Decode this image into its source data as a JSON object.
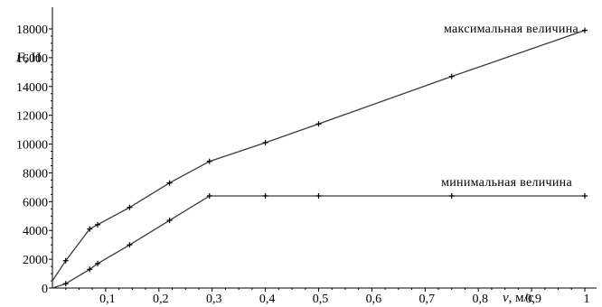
{
  "chart_data": {
    "type": "line",
    "x_axis": {
      "label_var": "v",
      "label_unit": ", м/с",
      "range": [
        0,
        1
      ],
      "ticks": [
        0.1,
        0.2,
        0.3,
        0.4,
        0.5,
        0.6,
        0.7,
        0.8,
        0.9,
        1
      ],
      "tick_labels": [
        "0,1",
        "0,2",
        "0,3",
        "0,4",
        "0,5",
        "0,6",
        "0,7",
        "0,8",
        "0,9",
        "1"
      ]
    },
    "y_axis": {
      "label_var": "F",
      "label_unit": ", Н",
      "range": [
        0,
        18000
      ],
      "ticks": [
        0,
        2000,
        4000,
        6000,
        8000,
        10000,
        12000,
        14000,
        16000,
        18000
      ],
      "tick_labels": [
        "0",
        "2000",
        "4000",
        "6000",
        "8000",
        "10000",
        "12000",
        "14000",
        "16000",
        "18000"
      ]
    },
    "series": [
      {
        "name": "максимальная величина",
        "x": [
          0,
          0.025,
          0.07,
          0.085,
          0.145,
          0.22,
          0.295,
          0.4,
          0.5,
          0.75,
          1
        ],
        "y": [
          500,
          1900,
          4100,
          4400,
          5600,
          7300,
          8800,
          10100,
          11400,
          14700,
          17900
        ]
      },
      {
        "name": "минимальная величина",
        "x": [
          0,
          0.025,
          0.07,
          0.085,
          0.145,
          0.22,
          0.295,
          0.4,
          0.5,
          0.75,
          1
        ],
        "y": [
          0,
          300,
          1300,
          1700,
          3000,
          4700,
          6400,
          6400,
          6400,
          6400,
          6400
        ]
      }
    ],
    "legend_placement": "inline labels above lines",
    "grid": false
  }
}
